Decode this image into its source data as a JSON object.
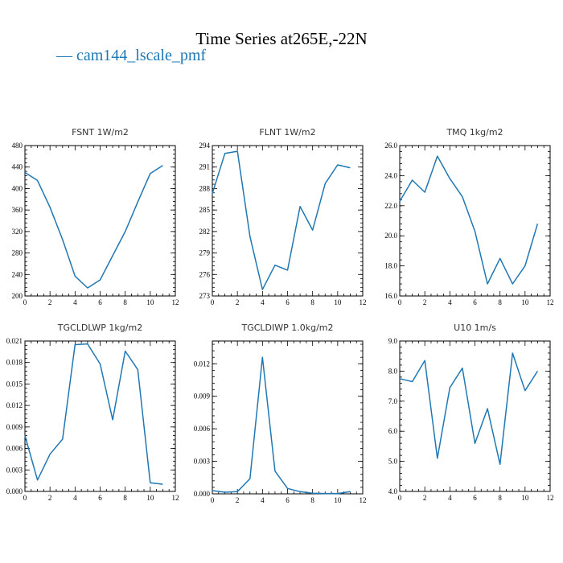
{
  "title": "Time Series at265E,-22N",
  "legend": {
    "label": "— cam144_lscale_pmf",
    "color": "#1f77b4"
  },
  "chart_data": [
    {
      "type": "line",
      "title": "FSNT 1W/m2",
      "x": [
        0,
        1,
        2,
        3,
        4,
        5,
        6,
        7,
        8,
        9,
        10,
        11
      ],
      "series": [
        {
          "name": "cam144_lscale_pmf",
          "values": [
            430,
            415,
            365,
            305,
            237,
            215,
            230,
            275,
            320,
            375,
            428,
            443
          ]
        }
      ],
      "xlim": [
        0,
        12
      ],
      "ylim": [
        200,
        480
      ],
      "xticks": [
        "0",
        "2",
        "4",
        "6",
        "8",
        "10",
        "12"
      ],
      "yticks": [
        "200",
        "240",
        "280",
        "320",
        "360",
        "400",
        "440",
        "480"
      ]
    },
    {
      "type": "line",
      "title": "FLNT 1W/m2",
      "x": [
        0,
        1,
        2,
        3,
        4,
        5,
        6,
        7,
        8,
        9,
        10,
        11
      ],
      "series": [
        {
          "name": "cam144_lscale_pmf",
          "values": [
            287.3,
            292.9,
            293.2,
            281.3,
            273.9,
            277.3,
            276.6,
            285.5,
            282.2,
            288.7,
            291.3,
            290.9
          ]
        }
      ],
      "xlim": [
        0,
        12
      ],
      "ylim": [
        273,
        294
      ],
      "xticks": [
        "0",
        "2",
        "4",
        "6",
        "8",
        "10",
        "12"
      ],
      "yticks": [
        "273",
        "276",
        "279",
        "282",
        "285",
        "288",
        "291",
        "294"
      ],
      "ytick_values": [
        273,
        276,
        279,
        282,
        285,
        288,
        291,
        294
      ]
    },
    {
      "type": "line",
      "title": "TMQ 1kg/m2",
      "x": [
        0,
        1,
        2,
        3,
        4,
        5,
        6,
        7,
        8,
        9,
        10,
        11
      ],
      "series": [
        {
          "name": "cam144_lscale_pmf",
          "values": [
            22.3,
            23.7,
            22.9,
            25.3,
            23.8,
            22.6,
            20.3,
            16.8,
            18.5,
            16.8,
            18.0,
            20.8
          ]
        }
      ],
      "xlim": [
        0,
        12
      ],
      "ylim": [
        16.0,
        26.0
      ],
      "xticks": [
        "0",
        "2",
        "4",
        "6",
        "8",
        "10",
        "12"
      ],
      "yticks": [
        "16.0",
        "18.0",
        "20.0",
        "22.0",
        "24.0",
        "26.0"
      ]
    },
    {
      "type": "line",
      "title": "TGCLDLWP 1kg/m2",
      "x": [
        0,
        1,
        2,
        3,
        4,
        5,
        6,
        7,
        8,
        9,
        10,
        11
      ],
      "series": [
        {
          "name": "cam144_lscale_pmf",
          "values": [
            0.0078,
            0.0016,
            0.0052,
            0.0073,
            0.0205,
            0.0206,
            0.0178,
            0.01,
            0.0196,
            0.017,
            0.0012,
            0.001
          ]
        }
      ],
      "xlim": [
        0,
        12
      ],
      "ylim": [
        0,
        0.021
      ],
      "xticks": [
        "0",
        "2",
        "4",
        "6",
        "8",
        "10",
        "12"
      ],
      "yticks": [
        "0.000",
        "0.003",
        "0.006",
        "0.009",
        "0.012",
        "0.015",
        "0.018",
        "0.021"
      ]
    },
    {
      "type": "line",
      "title": "TGCLDIWP 1.0kg/m2",
      "x": [
        0,
        1,
        2,
        3,
        4,
        5,
        6,
        7,
        8,
        9,
        10,
        11
      ],
      "series": [
        {
          "name": "cam144_lscale_pmf",
          "values": [
            0.0003,
            0.00015,
            0.0002,
            0.0014,
            0.0126,
            0.0021,
            0.0005,
            0.0002,
            5e-05,
            3e-05,
            3e-05,
            0.0002
          ]
        }
      ],
      "xlim": [
        0,
        12
      ],
      "ylim": [
        0,
        0.0141
      ],
      "xticks": [
        "0",
        "2",
        "4",
        "6",
        "8",
        "10",
        "12"
      ],
      "yticks": [
        "0.000",
        "0.003",
        "0.006",
        "0.009",
        "0.012"
      ]
    },
    {
      "type": "line",
      "title": "U10 1m/s",
      "x": [
        0,
        1,
        2,
        3,
        4,
        5,
        6,
        7,
        8,
        9,
        10,
        11
      ],
      "series": [
        {
          "name": "cam144_lscale_pmf",
          "values": [
            7.75,
            7.65,
            8.35,
            5.1,
            7.45,
            8.1,
            5.6,
            6.75,
            4.9,
            8.6,
            7.35,
            8.0
          ]
        }
      ],
      "xlim": [
        0,
        12
      ],
      "ylim": [
        4.0,
        9.0
      ],
      "xticks": [
        "0",
        "2",
        "4",
        "6",
        "8",
        "10",
        "12"
      ],
      "yticks": [
        "4.0",
        "5.0",
        "6.0",
        "7.0",
        "8.0",
        "9.0"
      ]
    }
  ]
}
